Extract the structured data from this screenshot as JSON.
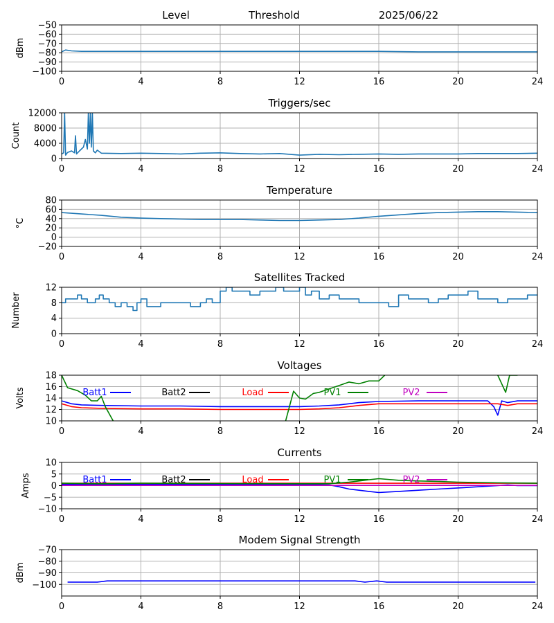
{
  "header": {
    "level": "Level",
    "threshold": "Threshold",
    "date": "2025/06/22"
  },
  "colors": {
    "default_series": "#1f77b4",
    "blue": "#0000ff",
    "black": "#000000",
    "red": "#ff0000",
    "green": "#008000",
    "magenta": "#bf00bf",
    "grid": "#b0b0b0"
  },
  "chart_data": [
    {
      "id": "level",
      "type": "line",
      "title": "",
      "ylabel": "dBm",
      "xlim": [
        0,
        24
      ],
      "ylim": [
        -100,
        -50
      ],
      "xticks": [
        0,
        4,
        8,
        12,
        16,
        20,
        24
      ],
      "yticks": [
        -100,
        -90,
        -80,
        -70,
        -60,
        -50
      ],
      "grid": true,
      "series": [
        {
          "color": "#1f77b4",
          "x": [
            0,
            0.2,
            0.5,
            1,
            2,
            4,
            6,
            8,
            10,
            12,
            14,
            16,
            18,
            20,
            22,
            24
          ],
          "y": [
            -79,
            -77,
            -78,
            -78.5,
            -78.5,
            -78.5,
            -78.5,
            -78.5,
            -78.5,
            -78.5,
            -78.5,
            -78.5,
            -79,
            -79,
            -79,
            -79
          ]
        }
      ]
    },
    {
      "id": "triggers",
      "type": "line",
      "title": "Triggers/sec",
      "ylabel": "Count",
      "xlim": [
        0,
        24
      ],
      "ylim": [
        0,
        12000
      ],
      "xticks": [
        0,
        4,
        8,
        12,
        16,
        20,
        24
      ],
      "yticks": [
        0,
        4000,
        8000,
        12000
      ],
      "grid": true,
      "series": [
        {
          "color": "#1f77b4",
          "x": [
            0,
            0.1,
            0.15,
            0.2,
            0.3,
            0.5,
            0.65,
            0.7,
            0.75,
            0.9,
            1.1,
            1.2,
            1.3,
            1.35,
            1.4,
            1.45,
            1.5,
            1.55,
            1.6,
            1.7,
            1.8,
            2,
            3,
            4,
            5,
            6,
            7,
            8,
            9,
            10,
            11,
            12,
            13,
            14,
            15,
            16,
            17,
            18,
            19,
            20,
            21,
            22,
            23,
            24
          ],
          "y": [
            1200,
            1500,
            12000,
            900,
            1600,
            2000,
            1500,
            6000,
            1200,
            2000,
            3000,
            5000,
            2500,
            12000,
            4000,
            12000,
            3000,
            12000,
            2000,
            1500,
            2200,
            1400,
            1300,
            1400,
            1300,
            1200,
            1400,
            1500,
            1300,
            1200,
            1300,
            900,
            1100,
            1000,
            1100,
            1200,
            1100,
            1200,
            1200,
            1200,
            1300,
            1300,
            1300,
            1400
          ]
        }
      ]
    },
    {
      "id": "temperature",
      "type": "line",
      "title": "Temperature",
      "ylabel": "°C",
      "xlim": [
        0,
        24
      ],
      "ylim": [
        -20,
        80
      ],
      "xticks": [
        0,
        4,
        8,
        12,
        16,
        20,
        24
      ],
      "yticks": [
        -20,
        0,
        20,
        40,
        60,
        80
      ],
      "grid": true,
      "series": [
        {
          "color": "#1f77b4",
          "x": [
            0,
            1,
            2,
            3,
            4,
            5,
            6,
            7,
            8,
            9,
            10,
            11,
            12,
            13,
            14,
            15,
            16,
            17,
            18,
            19,
            20,
            21,
            22,
            23,
            24
          ],
          "y": [
            53,
            50,
            47,
            43,
            41,
            40,
            39,
            38,
            38,
            38,
            37,
            36,
            36,
            37,
            38,
            41,
            45,
            48,
            51,
            53,
            54,
            55,
            55,
            54,
            53
          ]
        }
      ]
    },
    {
      "id": "satellites",
      "type": "line",
      "step": true,
      "title": "Satellites Tracked",
      "ylabel": "Number",
      "xlim": [
        0,
        24
      ],
      "ylim": [
        0,
        12
      ],
      "xticks": [
        0,
        4,
        8,
        12,
        16,
        20,
        24
      ],
      "yticks": [
        0,
        4,
        8,
        12
      ],
      "grid": true,
      "series": [
        {
          "color": "#1f77b4",
          "x": [
            0,
            0.2,
            0.5,
            0.8,
            1.0,
            1.3,
            1.7,
            1.9,
            2.1,
            2.4,
            2.7,
            3.0,
            3.3,
            3.6,
            3.8,
            4.0,
            4.3,
            4.6,
            5.0,
            5.5,
            6.0,
            6.5,
            7.0,
            7.3,
            7.6,
            8.0,
            8.3,
            8.6,
            9.0,
            9.5,
            10.0,
            10.4,
            10.8,
            11.2,
            11.6,
            12.0,
            12.3,
            12.6,
            13.0,
            13.5,
            14.0,
            14.5,
            15.0,
            15.5,
            16.0,
            16.5,
            17.0,
            17.5,
            18.0,
            18.5,
            19.0,
            19.5,
            20.0,
            20.5,
            21.0,
            21.5,
            22.0,
            22.5,
            23.0,
            23.5,
            24.0
          ],
          "y": [
            8,
            9,
            9,
            10,
            9,
            8,
            9,
            10,
            9,
            8,
            7,
            8,
            7,
            6,
            8,
            9,
            7,
            7,
            8,
            8,
            8,
            7,
            8,
            9,
            8,
            11,
            12,
            11,
            11,
            10,
            11,
            11,
            12,
            11,
            11,
            12,
            10,
            11,
            9,
            10,
            9,
            9,
            8,
            8,
            8,
            7,
            10,
            9,
            9,
            8,
            9,
            10,
            10,
            11,
            9,
            9,
            8,
            9,
            9,
            10,
            10
          ]
        }
      ]
    },
    {
      "id": "voltages",
      "type": "line",
      "title": "Voltages",
      "ylabel": "Volts",
      "xlim": [
        0,
        24
      ],
      "ylim": [
        10,
        18
      ],
      "xticks": [
        0,
        4,
        8,
        12,
        16,
        20,
        24
      ],
      "yticks": [
        10,
        12,
        14,
        16,
        18
      ],
      "grid": true,
      "legend": "top",
      "series": [
        {
          "name": "Batt1",
          "color": "#0000ff",
          "x": [
            0,
            0.5,
            1,
            2,
            4,
            6,
            8,
            10,
            12,
            13,
            14,
            15,
            16,
            18,
            20,
            21.5,
            21.8,
            22.0,
            22.2,
            22.5,
            23,
            24
          ],
          "y": [
            13.5,
            13.0,
            12.8,
            12.7,
            12.6,
            12.6,
            12.5,
            12.5,
            12.5,
            12.6,
            12.8,
            13.2,
            13.4,
            13.5,
            13.5,
            13.5,
            12.5,
            11.0,
            13.5,
            13.2,
            13.5,
            13.5
          ]
        },
        {
          "name": "Batt2",
          "color": "#000000",
          "x": [],
          "y": []
        },
        {
          "name": "Load",
          "color": "#ff0000",
          "x": [
            0,
            0.5,
            1,
            2,
            4,
            6,
            8,
            10,
            12,
            13,
            14,
            15,
            16,
            18,
            20,
            22,
            22.5,
            23,
            24
          ],
          "y": [
            13.0,
            12.5,
            12.3,
            12.2,
            12.1,
            12.1,
            12.0,
            12.0,
            12.0,
            12.1,
            12.3,
            12.7,
            13.0,
            13.0,
            13.0,
            13.0,
            12.7,
            13.0,
            13.0
          ]
        },
        {
          "name": "PV1",
          "color": "#008000",
          "x": [
            0,
            0.3,
            0.8,
            1.2,
            1.5,
            1.8,
            2.0,
            2.2,
            2.6
          ],
          "y": [
            18,
            15.8,
            15.3,
            14.5,
            13.5,
            13.5,
            14.3,
            12.5,
            10
          ]
        },
        {
          "name": "PV1",
          "color": "#008000",
          "x": [
            11.3,
            11.7,
            12.0,
            12.3,
            12.7,
            13.0,
            13.5,
            14.0,
            14.5,
            15.0,
            15.5,
            16.0,
            16.3
          ],
          "y": [
            10,
            15.2,
            14.0,
            13.8,
            14.8,
            15.0,
            15.6,
            16.2,
            16.8,
            16.5,
            17.0,
            17.0,
            18
          ]
        },
        {
          "name": "PV1",
          "color": "#008000",
          "x": [
            22.0,
            22.4,
            22.6,
            23.0
          ],
          "y": [
            18,
            15.0,
            18,
            18
          ]
        },
        {
          "name": "PV2",
          "color": "#bf00bf",
          "x": [],
          "y": []
        }
      ]
    },
    {
      "id": "currents",
      "type": "line",
      "title": "Currents",
      "ylabel": "Amps",
      "xlim": [
        0,
        24
      ],
      "ylim": [
        -10,
        10
      ],
      "xticks": [
        0,
        4,
        8,
        12,
        16,
        20,
        24
      ],
      "yticks": [
        -10,
        -5,
        0,
        5,
        10
      ],
      "grid": true,
      "legend": "top",
      "series": [
        {
          "name": "Batt1",
          "color": "#0000ff",
          "x": [
            0,
            2,
            4,
            8,
            12,
            13.5,
            14,
            14.5,
            15,
            15.5,
            16,
            17,
            18,
            19,
            20,
            21,
            22,
            22.5,
            23,
            24
          ],
          "y": [
            0.5,
            0.5,
            0.5,
            0.5,
            0.5,
            0.3,
            -0.5,
            -1.5,
            -2.0,
            -2.5,
            -3.0,
            -2.5,
            -2.0,
            -1.5,
            -1.0,
            -0.5,
            0,
            0.3,
            0,
            0
          ]
        },
        {
          "name": "Batt2",
          "color": "#000000",
          "x": [],
          "y": []
        },
        {
          "name": "Load",
          "color": "#ff0000",
          "x": [
            0,
            4,
            8,
            12,
            16,
            20,
            24
          ],
          "y": [
            1.0,
            1.0,
            1.0,
            1.0,
            1.0,
            1.0,
            1.0
          ]
        },
        {
          "name": "PV1",
          "color": "#008000",
          "x": [
            0,
            2,
            4,
            8,
            12,
            13.5,
            14.5,
            15.5,
            16,
            17,
            18,
            19,
            20,
            22,
            24
          ],
          "y": [
            1.0,
            0.8,
            1.0,
            0.9,
            0.8,
            0.8,
            1.5,
            2.5,
            3.0,
            2.3,
            2.0,
            1.8,
            1.5,
            1.2,
            1.0
          ]
        },
        {
          "name": "PV2",
          "color": "#bf00bf",
          "x": [
            0,
            24
          ],
          "y": [
            0.1,
            0.1
          ]
        }
      ]
    },
    {
      "id": "modem",
      "type": "line",
      "title": "Modem Signal Strength",
      "ylabel": "dBm",
      "xlim": [
        0,
        24
      ],
      "ylim": [
        -110,
        -70
      ],
      "xticks": [
        0,
        4,
        8,
        12,
        16,
        20,
        24
      ],
      "yticks": [
        -100,
        -90,
        -80,
        -70
      ],
      "grid": true,
      "series": [
        {
          "color": "#0000ff",
          "x": [
            0.3,
            1.8,
            2.3,
            14.8,
            15.3,
            15.9,
            16.4,
            23.9
          ],
          "y": [
            -98,
            -98,
            -97,
            -97,
            -98,
            -97,
            -98,
            -98
          ]
        }
      ]
    }
  ]
}
